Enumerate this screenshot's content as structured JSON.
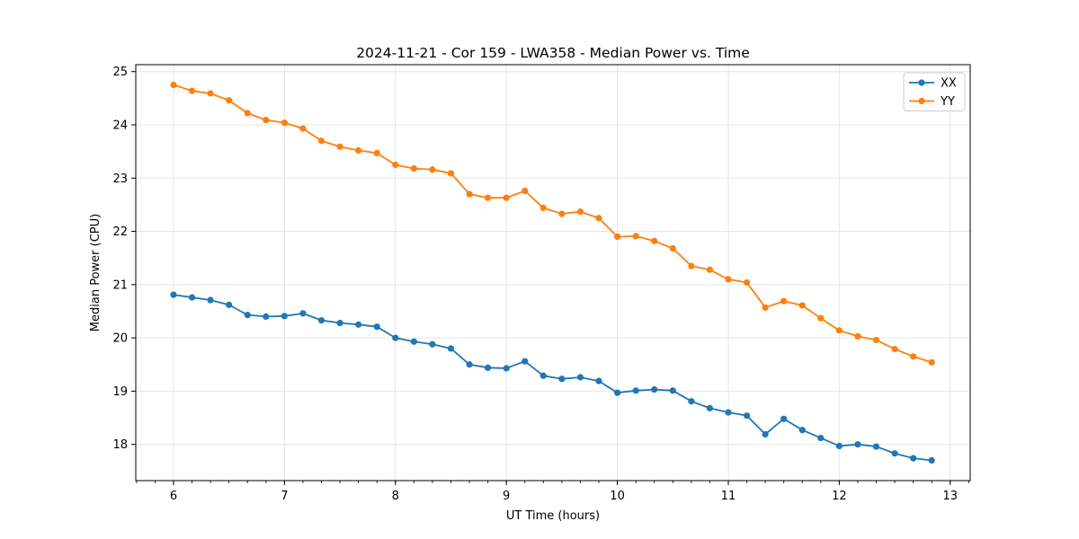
{
  "figure": {
    "background": "#ffffff",
    "spine_color": "#000000",
    "grid_color": "#e5e5e5",
    "text_color": "#000000"
  },
  "chart_data": {
    "type": "line",
    "title": "2024-11-21 - Cor 159 - LWA358 - Median Power vs. Time",
    "xlabel": "UT Time (hours)",
    "ylabel": "Median Power (CPU)",
    "xlim": [
      5.66,
      13.18
    ],
    "ylim": [
      17.32,
      25.13
    ],
    "xticks": [
      6,
      7,
      8,
      9,
      10,
      11,
      12,
      13
    ],
    "yticks": [
      18,
      19,
      20,
      21,
      22,
      23,
      24,
      25
    ],
    "x_minor_step": 0.166667,
    "grid": true,
    "legend": {
      "position": "upper right",
      "entries": [
        "XX",
        "YY"
      ]
    },
    "x": [
      6.0,
      6.167,
      6.333,
      6.5,
      6.667,
      6.833,
      7.0,
      7.167,
      7.333,
      7.5,
      7.667,
      7.833,
      8.0,
      8.167,
      8.333,
      8.5,
      8.667,
      8.833,
      9.0,
      9.167,
      9.333,
      9.5,
      9.667,
      9.833,
      10.0,
      10.167,
      10.333,
      10.5,
      10.667,
      10.833,
      11.0,
      11.167,
      11.333,
      11.5,
      11.667,
      11.833,
      12.0,
      12.167,
      12.333,
      12.5,
      12.667,
      12.833
    ],
    "series": [
      {
        "name": "XX",
        "color": "#1f77b4",
        "marker": "circle",
        "values": [
          20.81,
          20.76,
          20.71,
          20.62,
          20.43,
          20.4,
          20.41,
          20.46,
          20.33,
          20.28,
          20.25,
          20.21,
          20.0,
          19.93,
          19.88,
          19.8,
          19.5,
          19.44,
          19.43,
          19.56,
          19.29,
          19.23,
          19.26,
          19.19,
          18.97,
          19.01,
          19.03,
          19.01,
          18.81,
          18.68,
          18.6,
          18.54,
          18.19,
          18.48,
          18.27,
          18.12,
          17.97,
          18.0,
          17.96,
          17.83,
          17.74,
          17.7
        ]
      },
      {
        "name": "YY",
        "color": "#ff7f0e",
        "marker": "circle",
        "values": [
          24.75,
          24.64,
          24.59,
          24.46,
          24.22,
          24.09,
          24.04,
          23.93,
          23.7,
          23.59,
          23.52,
          23.47,
          23.25,
          23.18,
          23.16,
          23.09,
          22.7,
          22.63,
          22.63,
          22.76,
          22.44,
          22.33,
          22.37,
          22.25,
          21.9,
          21.91,
          21.82,
          21.68,
          21.35,
          21.28,
          21.1,
          21.04,
          20.57,
          20.69,
          20.61,
          20.37,
          20.14,
          20.03,
          19.96,
          19.79,
          19.65,
          19.54
        ]
      }
    ]
  }
}
